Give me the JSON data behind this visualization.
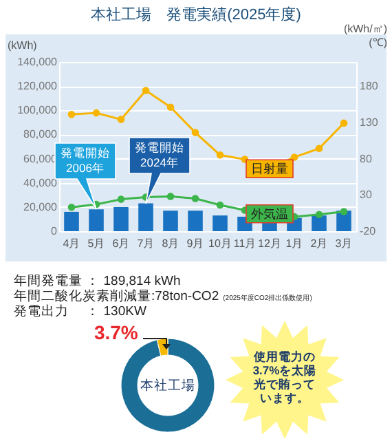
{
  "chart_data": [
    {
      "type": "bar",
      "title": "本社工場　発電実績(2025年度)",
      "ylabel": "(kWh)",
      "y2label": "(kWh/㎡)\n(℃)",
      "categories": [
        "4月",
        "5月",
        "6月",
        "7月",
        "8月",
        "9月",
        "10月",
        "11月",
        "12月",
        "1月",
        "2月",
        "3月"
      ],
      "series": [
        {
          "color": "#1a73c2",
          "values": [
            16000,
            18000,
            20000,
            23000,
            17000,
            17000,
            13000,
            12000,
            10000,
            11000,
            13000,
            17000
          ]
        },
        {
          "type": "line",
          "name": "日射量",
          "axis": "y2",
          "color": "#f7b500",
          "values": [
            141,
            143,
            134,
            174,
            151,
            116,
            85,
            79,
            66,
            82,
            94,
            129
          ]
        },
        {
          "type": "line",
          "name": "外気温",
          "axis": "y2",
          "color": "#3cb54a",
          "values": [
            13,
            17,
            24,
            27,
            28,
            25,
            16,
            9,
            4,
            0,
            3,
            7
          ]
        }
      ],
      "ylim": [
        0,
        140000
      ],
      "yticks": [
        {
          "value": 0,
          "label": "0"
        },
        {
          "value": 20000,
          "label": "20,000"
        },
        {
          "value": 40000,
          "label": "40,000"
        },
        {
          "value": 60000,
          "label": "60,000"
        },
        {
          "value": 80000,
          "label": "80,000"
        },
        {
          "value": 100000,
          "label": "100,000"
        },
        {
          "value": 120000,
          "label": "120,000"
        },
        {
          "value": 140000,
          "label": "140,000"
        }
      ],
      "y2lim": [
        -20,
        213.3
      ],
      "y2ticks": [
        -20,
        30,
        80,
        130,
        180
      ],
      "grid": "y",
      "marker": "circle",
      "annotations": [
        {
          "text": "発電開始\n2006年",
          "x": "5月",
          "y": 18000
        },
        {
          "text": "発電開始\n2024年",
          "x": "7月",
          "y": 23000
        }
      ]
    },
    {
      "type": "donut",
      "title": "本社工場",
      "categories": [
        null,
        null
      ],
      "values": [
        96.3,
        3.7
      ],
      "colors": [
        "#1b6f96",
        "#f5b800"
      ],
      "value_labels": [
        null,
        "3.7%"
      ],
      "annotations": [
        "年間発電量 ： 189,814 kWh",
        "年間二酸化炭素削減量:78ton-CO2",
        "(2025年度CO2排出係数使用)",
        "発電出力　 ： 130KW",
        "使用電力の3.7%を太陽光で賄っています。"
      ]
    }
  ]
}
